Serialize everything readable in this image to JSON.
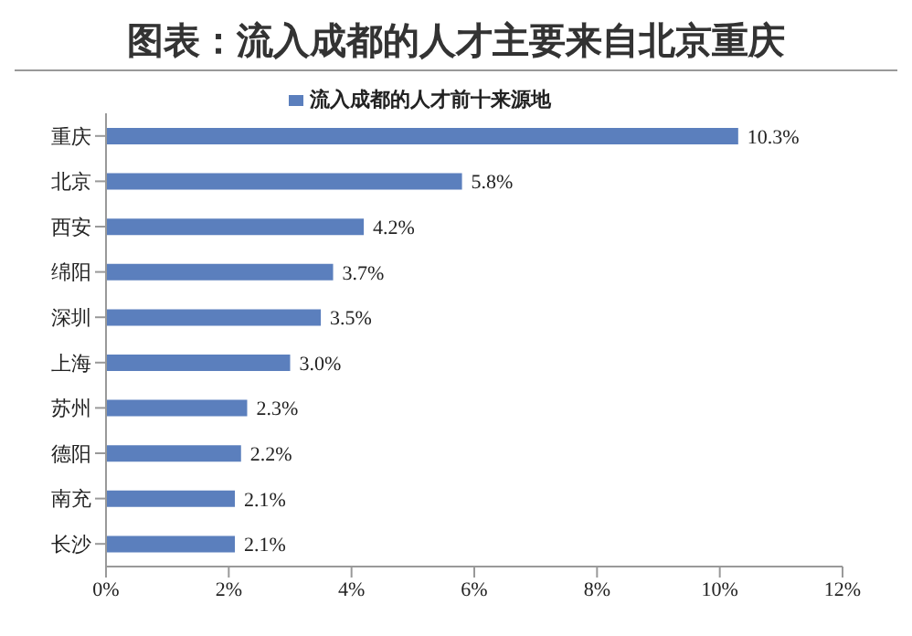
{
  "chart_data": {
    "type": "bar",
    "orientation": "horizontal",
    "title": "图表：流入成都的人才主要来自北京重庆",
    "categories": [
      "重庆",
      "北京",
      "西安",
      "绵阳",
      "深圳",
      "上海",
      "苏州",
      "德阳",
      "南充",
      "长沙"
    ],
    "series": [
      {
        "name": "流入成都的人才前十来源地",
        "color": "#5b7fbd",
        "values": [
          10.3,
          5.8,
          4.2,
          3.7,
          3.5,
          3.0,
          2.3,
          2.2,
          2.1,
          2.1
        ],
        "value_labels": [
          "10.3%",
          "5.8%",
          "4.2%",
          "3.7%",
          "3.5%",
          "3.0%",
          "2.3%",
          "2.2%",
          "2.1%",
          "2.1%"
        ]
      }
    ],
    "xlim": [
      0,
      12
    ],
    "xticks": [
      {
        "value": 0,
        "label": "0%"
      },
      {
        "value": 2,
        "label": "2%"
      },
      {
        "value": 4,
        "label": "4%"
      },
      {
        "value": 6,
        "label": "6%"
      },
      {
        "value": 8,
        "label": "8%"
      },
      {
        "value": 10,
        "label": "10%"
      },
      {
        "value": 12,
        "label": "12%"
      }
    ],
    "grid": false,
    "legend": "top"
  }
}
